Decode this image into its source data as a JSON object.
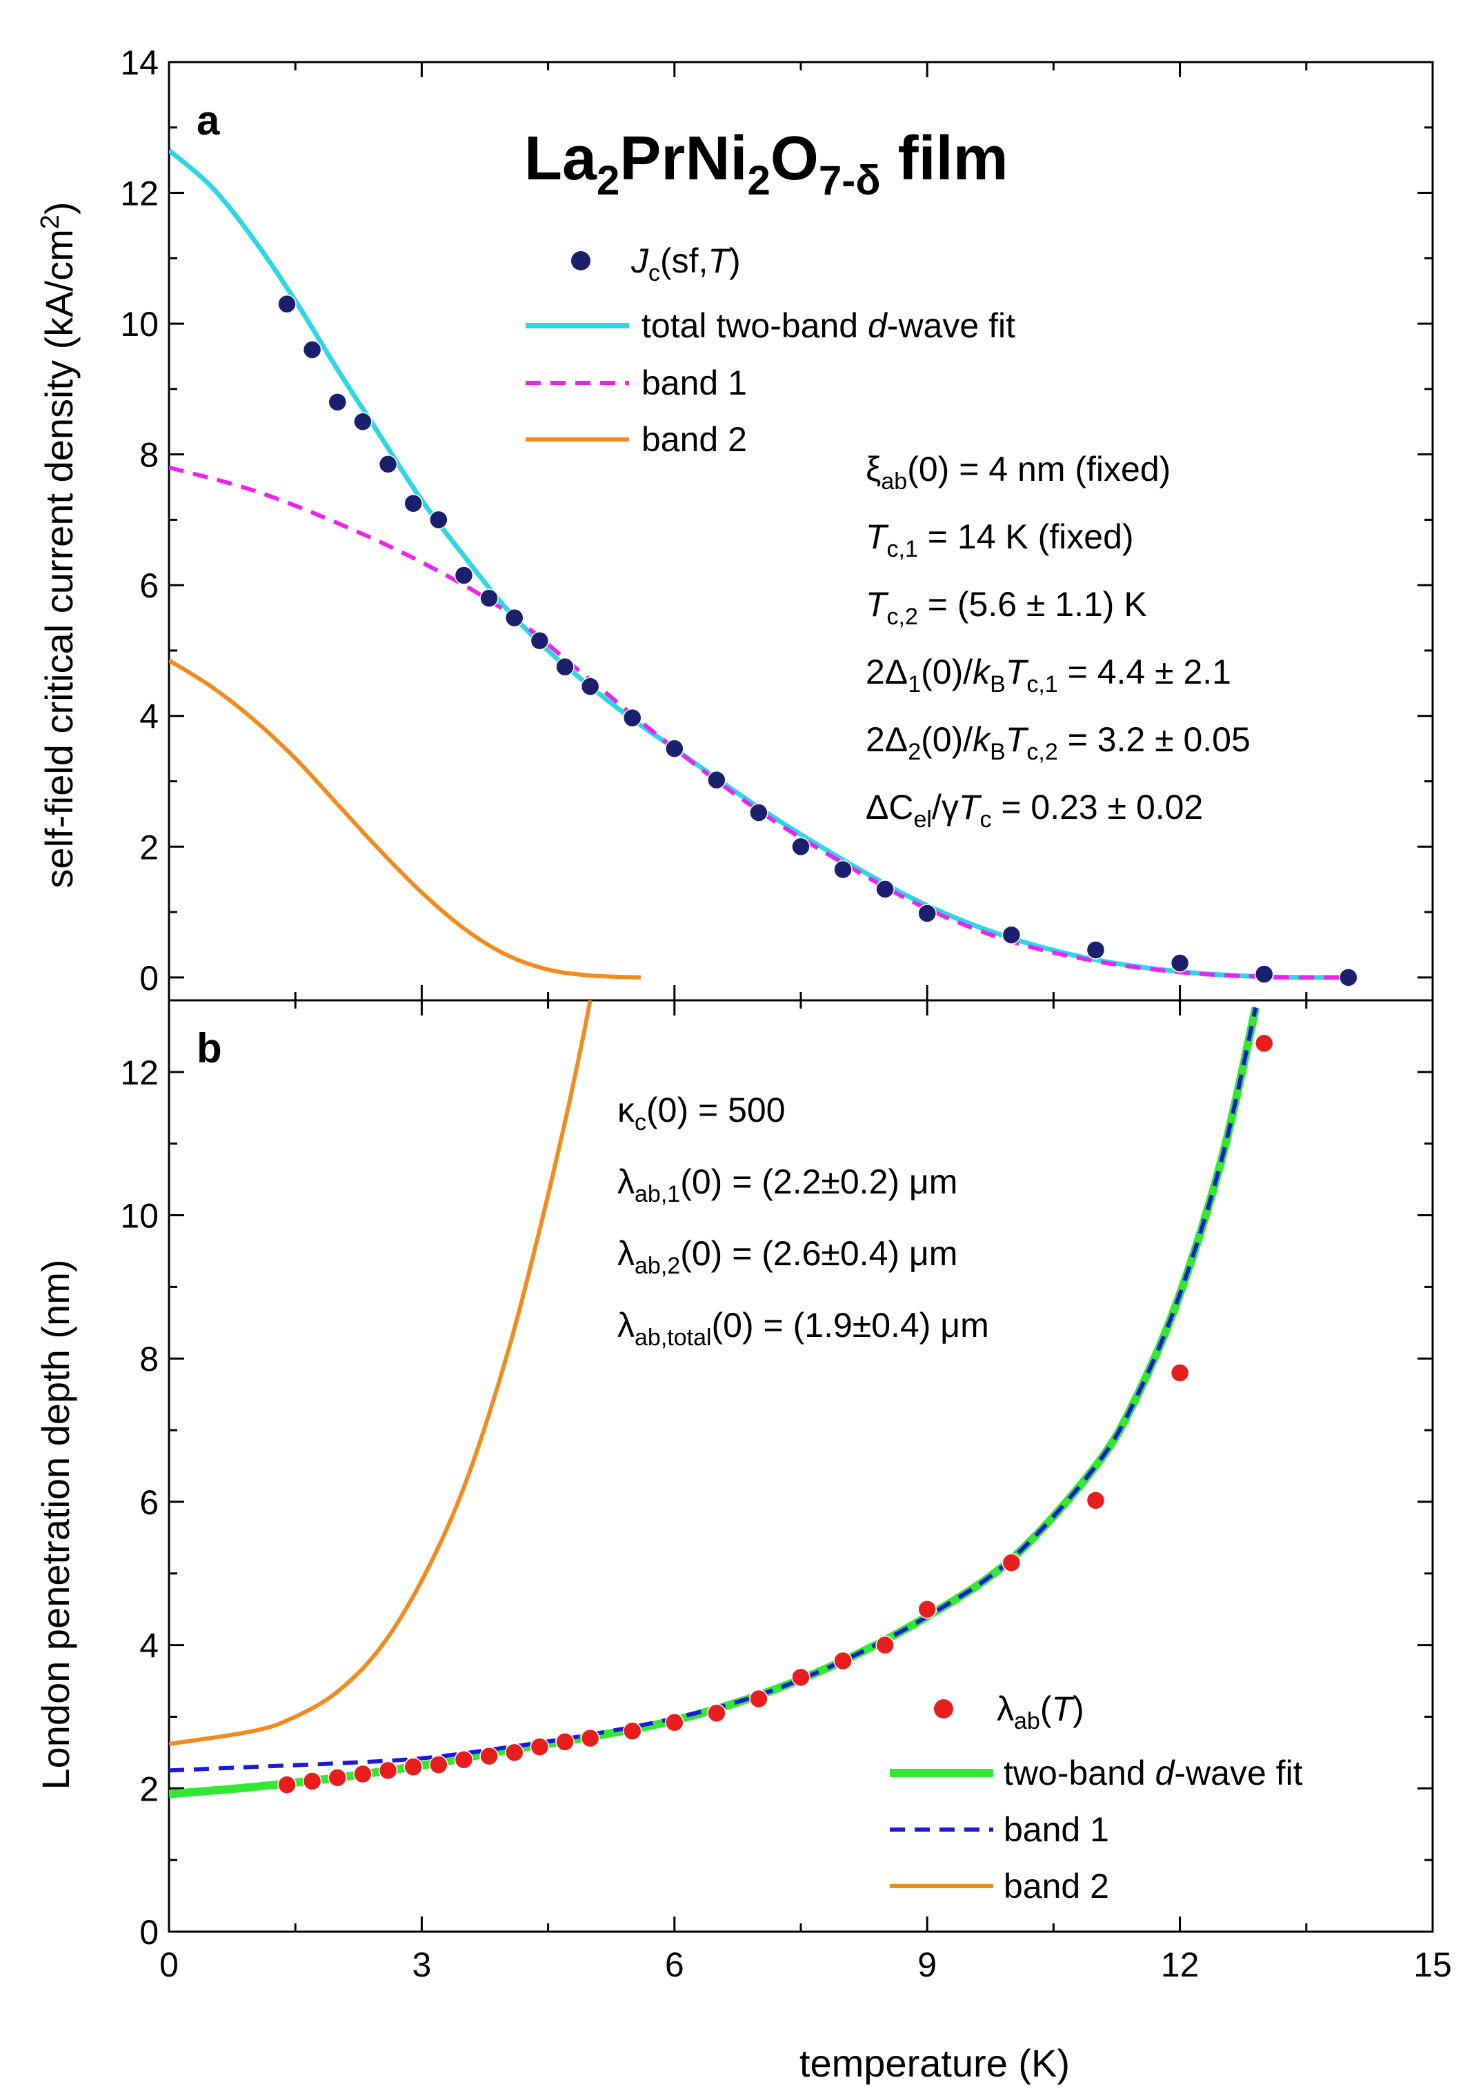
{
  "chart_data": [
    {
      "panel": "a",
      "type": "scatter+line",
      "title": "La2PrNi2O7-δ film",
      "title_parts": {
        "el1": "La",
        "sub1": "2",
        "el2": "PrNi",
        "sub2": "2",
        "el3": "O",
        "sub3": "7-δ",
        "rest": " film"
      },
      "ylabel": "self-field critical current density (kA/cm2)",
      "ylabel_parts": {
        "main": "self-field critical current density (kA/cm",
        "sup": "2",
        "end": ")"
      },
      "xlim": [
        0,
        15
      ],
      "ylim": [
        -0.35,
        14
      ],
      "yticks": [
        "0",
        "2",
        "4",
        "6",
        "8",
        "10",
        "12",
        "14"
      ],
      "legend": [
        {
          "kind": "marker",
          "parts": {
            "it": "J",
            "sub": "c",
            "mid": "(sf,",
            "it2": "T",
            "end": ")"
          }
        },
        {
          "kind": "line",
          "text_pre": "total two-band ",
          "text_it": "d",
          "text_post": "-wave fit"
        },
        {
          "kind": "dash",
          "text": "band 1"
        },
        {
          "kind": "line",
          "text": "band 2"
        }
      ],
      "annotations": {
        "xi": {
          "sym": "ξ",
          "sub": "ab",
          "rest": "(0) = 4 nm (fixed)"
        },
        "tc1": {
          "it": "T",
          "sub": "c,1",
          "rest": " = 14 K (fixed)"
        },
        "tc2": {
          "it": "T",
          "sub": "c,2",
          "rest": " = (5.6 ± 1.1) K"
        },
        "d1": {
          "pre": "2Δ",
          "sub1": "1",
          "mid": "(0)/",
          "it": "k",
          "sub2": "B",
          "it2": "T",
          "sub3": "c,1",
          "rest": " = 4.4 ± 2.1"
        },
        "d2": {
          "pre": "2Δ",
          "sub1": "2",
          "mid": "(0)/",
          "it": "k",
          "sub2": "B",
          "it2": "T",
          "sub3": "c,2",
          "rest": " = 3.2 ± 0.05"
        },
        "dc": {
          "pre": "ΔC",
          "sub1": "el",
          "mid": "/γ",
          "it": "T",
          "sub2": "c",
          "rest": " = 0.23 ± 0.02"
        }
      },
      "series": [
        {
          "name": "Jc(sf,T)",
          "type": "scatter",
          "color": "#1a1f6e",
          "x": [
            1.4,
            1.7,
            2.0,
            2.3,
            2.6,
            2.9,
            3.2,
            3.5,
            3.8,
            4.1,
            4.4,
            4.7,
            5.0,
            5.5,
            6.0,
            6.5,
            7.0,
            7.5,
            8.0,
            8.5,
            9.0,
            10.0,
            11.0,
            12.0,
            13.0,
            14.0
          ],
          "y": [
            10.3,
            9.6,
            8.8,
            8.5,
            7.85,
            7.25,
            7.0,
            6.15,
            5.8,
            5.5,
            5.15,
            4.75,
            4.45,
            3.97,
            3.5,
            3.02,
            2.52,
            2.0,
            1.65,
            1.35,
            0.98,
            0.65,
            0.42,
            0.22,
            0.05,
            0.0
          ]
        },
        {
          "name": "total two-band d-wave fit",
          "type": "line",
          "color": "#2fd6e6",
          "x": [
            0,
            0.5,
            1.0,
            1.5,
            2.0,
            2.5,
            3.0,
            3.5,
            4.0,
            4.5,
            5.0,
            5.5,
            6.0,
            7.0,
            8.0,
            9.0,
            10.0,
            11.0,
            12.0,
            13.0,
            14.0
          ],
          "y": [
            12.65,
            12.1,
            11.3,
            10.35,
            9.3,
            8.3,
            7.3,
            6.45,
            5.65,
            5.0,
            4.45,
            3.95,
            3.5,
            2.6,
            1.8,
            1.1,
            0.6,
            0.27,
            0.09,
            0.01,
            0.0
          ]
        },
        {
          "name": "band 1",
          "type": "dashed",
          "color": "#ee22ee",
          "x": [
            0,
            1,
            2,
            3,
            4,
            5,
            6,
            7,
            8,
            9,
            10,
            11,
            12,
            13,
            14
          ],
          "y": [
            7.8,
            7.45,
            6.95,
            6.35,
            5.6,
            4.55,
            3.5,
            2.55,
            1.75,
            1.05,
            0.55,
            0.25,
            0.08,
            0.01,
            0.0
          ]
        },
        {
          "name": "band 2",
          "type": "line",
          "color": "#f28a1e",
          "x": [
            0,
            0.5,
            1.0,
            1.5,
            2.0,
            2.5,
            3.0,
            3.5,
            4.0,
            4.5,
            5.0,
            5.6
          ],
          "y": [
            4.85,
            4.45,
            3.95,
            3.35,
            2.65,
            1.95,
            1.3,
            0.75,
            0.35,
            0.12,
            0.03,
            0.0
          ]
        }
      ]
    },
    {
      "panel": "b",
      "type": "scatter+line",
      "ylabel": "London penetration depth (nm)",
      "xlabel": "temperature (K)",
      "xlim": [
        0,
        15
      ],
      "ylim": [
        0,
        13
      ],
      "xticks": [
        "0",
        "3",
        "6",
        "9",
        "12",
        "15"
      ],
      "yticks": [
        "0",
        "2",
        "4",
        "6",
        "8",
        "10",
        "12"
      ],
      "legend": [
        {
          "kind": "marker",
          "parts": {
            "sym": "λ",
            "sub": "ab",
            "mid": "(",
            "it": "T",
            "end": ")"
          }
        },
        {
          "kind": "line",
          "text_pre": "two-band ",
          "text_it": "d",
          "text_post": "-wave fit"
        },
        {
          "kind": "dash",
          "text": "band 1"
        },
        {
          "kind": "line",
          "text": "band 2"
        }
      ],
      "annotations": {
        "kappa": {
          "sym": "κ",
          "sub": "c",
          "rest": "(0) = 500"
        },
        "l1": {
          "sym": "λ",
          "sub": "ab,1",
          "rest": "(0) = (2.2±0.2) μm"
        },
        "l2": {
          "sym": "λ",
          "sub": "ab,2",
          "rest": "(0) = (2.6±0.4) μm"
        },
        "lt": {
          "sym": "λ",
          "sub": "ab,total",
          "rest": "(0) = (1.9±0.4) μm"
        }
      },
      "series": [
        {
          "name": "λab(T)",
          "type": "scatter",
          "color": "#e81e1e",
          "x": [
            1.4,
            1.7,
            2.0,
            2.3,
            2.6,
            2.9,
            3.2,
            3.5,
            3.8,
            4.1,
            4.4,
            4.7,
            5.0,
            5.5,
            6.0,
            6.5,
            7.0,
            7.5,
            8.0,
            8.5,
            9.0,
            10.0,
            11.0,
            12.0,
            13.0
          ],
          "y": [
            2.05,
            2.1,
            2.15,
            2.2,
            2.25,
            2.3,
            2.33,
            2.4,
            2.45,
            2.5,
            2.58,
            2.65,
            2.7,
            2.8,
            2.92,
            3.05,
            3.25,
            3.55,
            3.78,
            4.0,
            4.5,
            5.15,
            6.02,
            7.8,
            12.4
          ]
        },
        {
          "name": "two-band d-wave fit",
          "type": "line",
          "color": "#33e833",
          "x": [
            0,
            1,
            2,
            3,
            4,
            5,
            6,
            7,
            8,
            9,
            10,
            11,
            11.5,
            12,
            12.5,
            12.9
          ],
          "y": [
            1.92,
            2.02,
            2.15,
            2.32,
            2.53,
            2.72,
            2.95,
            3.3,
            3.78,
            4.4,
            5.2,
            6.5,
            7.5,
            8.9,
            10.8,
            12.9
          ]
        },
        {
          "name": "band 1",
          "type": "dashed",
          "color": "#1a1ad9",
          "x": [
            0,
            1,
            2,
            3,
            4,
            5,
            6,
            7,
            8,
            9,
            10,
            11,
            11.5,
            12,
            12.5,
            12.9
          ],
          "y": [
            2.25,
            2.3,
            2.35,
            2.42,
            2.57,
            2.75,
            2.98,
            3.3,
            3.78,
            4.4,
            5.2,
            6.5,
            7.5,
            8.9,
            10.8,
            12.9
          ]
        },
        {
          "name": "band 2",
          "type": "line",
          "color": "#f28a1e",
          "x": [
            0,
            1.0,
            1.5,
            2.0,
            2.5,
            3.0,
            3.5,
            4.0,
            4.4,
            4.7,
            4.9,
            5.0
          ],
          "y": [
            2.62,
            2.8,
            3.0,
            3.35,
            3.95,
            4.9,
            6.2,
            8.0,
            9.8,
            11.3,
            12.4,
            13.0
          ]
        }
      ]
    }
  ]
}
